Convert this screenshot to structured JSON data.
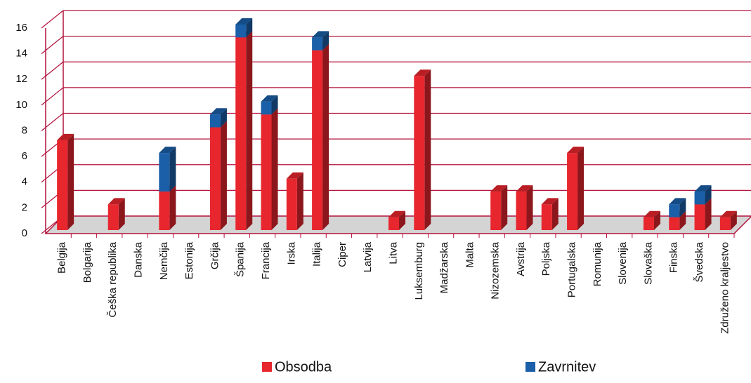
{
  "chart_data": {
    "type": "bar",
    "stacked": true,
    "categories": [
      "Belgija",
      "Bolgarija",
      "Češka republika",
      "Danska",
      "Nemčija",
      "Estonija",
      "Grčija",
      "Španija",
      "Francija",
      "Irska",
      "Italija",
      "Ciper",
      "Latvija",
      "Litva",
      "Luksemburg",
      "Madžarska",
      "Malta",
      "Nizozemska",
      "Avstrija",
      "Poljska",
      "Portugalska",
      "Romunija",
      "Slovenija",
      "Slovaška",
      "Finska",
      "Švedska",
      "Združeno kraljestvo"
    ],
    "series": [
      {
        "name": "Obsodba",
        "color": "#e8262e",
        "values": [
          7,
          0,
          2,
          0,
          3,
          0,
          8,
          15,
          9,
          4,
          14,
          0,
          0,
          1,
          12,
          0,
          0,
          3,
          3,
          2,
          6,
          0,
          0,
          1,
          1,
          2,
          1
        ]
      },
      {
        "name": "Zavrnitev",
        "color": "#1a5fa8",
        "values": [
          0,
          0,
          0,
          0,
          3,
          0,
          1,
          1,
          1,
          0,
          1,
          0,
          0,
          0,
          0,
          0,
          0,
          0,
          0,
          0,
          0,
          0,
          0,
          0,
          1,
          1,
          0
        ]
      }
    ],
    "ylim": [
      0,
      16
    ],
    "yticks": [
      0,
      2,
      4,
      6,
      8,
      10,
      12,
      14,
      16
    ],
    "grid": true,
    "legend": "bottom"
  }
}
